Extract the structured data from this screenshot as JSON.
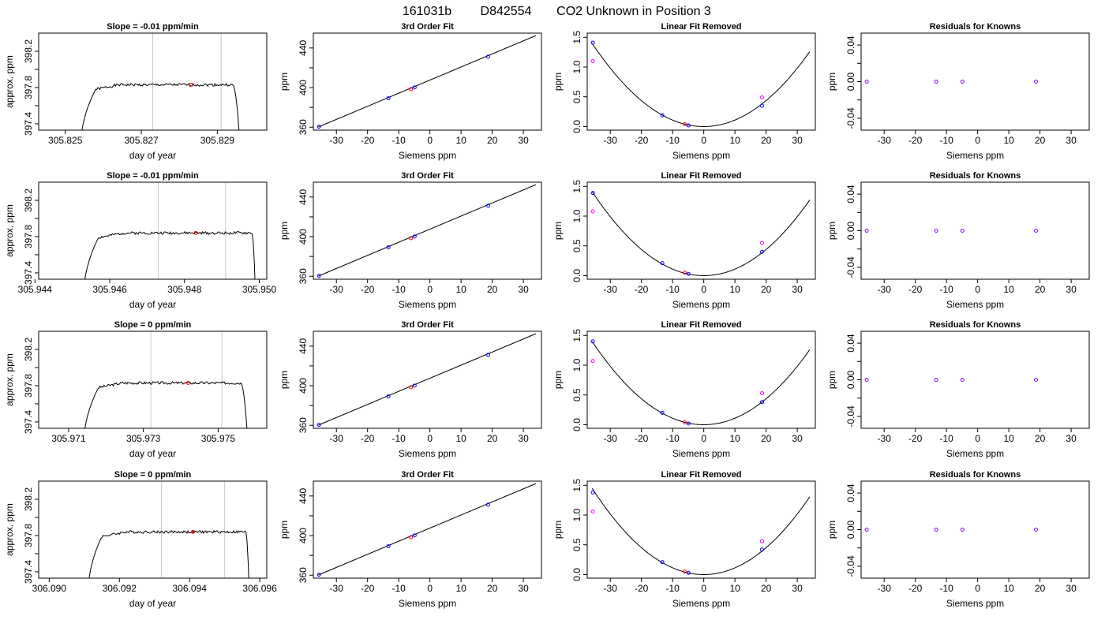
{
  "figure": {
    "title_parts": [
      "161031b",
      "D842554",
      "CO2 Unknown in Position  3"
    ]
  },
  "colors": {
    "axis": "#000000",
    "vline": "#c8c8c8",
    "highlight": "#ff0000",
    "blue": "#0000ff",
    "magenta": "#ff00ff",
    "purple": "#8000ff",
    "curve": "#000000"
  },
  "chart_data": [
    {
      "type": "line",
      "row": 0,
      "col": 0,
      "title": "Slope =  -0.01  ppm/min",
      "xlabel": "day of year",
      "ylabel": "approx. ppm",
      "xlim": [
        305.8243,
        305.8303
      ],
      "ylim": [
        397.33,
        398.4
      ],
      "xticks": [
        305.825,
        305.827,
        305.829
      ],
      "xticklabels": [
        "305.825",
        "305.827",
        "305.829"
      ],
      "yticks": [
        397.4,
        397.6,
        397.8,
        398.0,
        398.2
      ],
      "yticklabels": [
        "397.4",
        "",
        "397.8",
        "",
        "398.2"
      ],
      "vlines": [
        305.8273,
        305.8291
      ],
      "plateau": 397.83,
      "rise": [
        305.8254,
        305.8258
      ],
      "fall": [
        305.8294,
        305.8296
      ],
      "noise_seed": 1,
      "highlight": [
        305.8283,
        397.83
      ]
    },
    {
      "type": "scatter",
      "row": 0,
      "col": 1,
      "title": "3rd Order Fit",
      "xlabel": "Siemens ppm",
      "ylabel": "ppm",
      "xlim": [
        -37.4,
        35.8
      ],
      "ylim": [
        357,
        455
      ],
      "xticks": [
        -30,
        -20,
        -10,
        0,
        10,
        20,
        30
      ],
      "xticklabels": [
        "-30",
        "-20",
        "-10",
        "0",
        "10",
        "20",
        "30"
      ],
      "yticks": [
        360,
        380,
        400,
        420,
        440
      ],
      "yticklabels": [
        "360",
        "",
        "400",
        "",
        "440"
      ],
      "line": {
        "x": [
          -35.8,
          34.0
        ],
        "y": [
          360.2,
          452.5
        ]
      },
      "points": [
        {
          "x": -35.6,
          "y": 360.5,
          "c": "blue"
        },
        {
          "x": -13.3,
          "y": 389.2,
          "c": "blue"
        },
        {
          "x": -4.9,
          "y": 400.1,
          "c": "blue"
        },
        {
          "x": 18.7,
          "y": 431.2,
          "c": "blue"
        },
        {
          "x": -6.1,
          "y": 398.4,
          "c": "highlight"
        }
      ]
    },
    {
      "type": "scatter",
      "row": 0,
      "col": 2,
      "title": "Linear Fit Removed",
      "xlabel": "Siemens ppm",
      "ylabel": "ppm",
      "xlim": [
        -37.4,
        35.8
      ],
      "ylim": [
        -0.06,
        1.57
      ],
      "xticks": [
        -30,
        -20,
        -10,
        0,
        10,
        20,
        30
      ],
      "xticklabels": [
        "-30",
        "-20",
        "-10",
        "0",
        "10",
        "20",
        "30"
      ],
      "yticks": [
        0,
        0.5,
        1,
        1.5
      ],
      "yticklabels": [
        "0.0",
        "0.5",
        "1.0",
        "1.5"
      ],
      "curve": {
        "a": 0.00109,
        "h": 0.0,
        "k": 0.0,
        "xmin": -35.8,
        "xmax": 34.0
      },
      "points": [
        {
          "x": -35.6,
          "y": 1.41,
          "c": "blue"
        },
        {
          "x": -13.3,
          "y": 0.19,
          "c": "blue"
        },
        {
          "x": -4.9,
          "y": 0.02,
          "c": "blue"
        },
        {
          "x": 18.7,
          "y": 0.35,
          "c": "blue"
        },
        {
          "x": -35.6,
          "y": 1.1,
          "c": "magenta"
        },
        {
          "x": 18.7,
          "y": 0.49,
          "c": "magenta"
        },
        {
          "x": -6.1,
          "y": 0.04,
          "c": "highlight"
        }
      ]
    },
    {
      "type": "scatter",
      "row": 0,
      "col": 3,
      "title": "Residuals for Knowns",
      "xlabel": "Siemens ppm",
      "ylabel": "ppm",
      "xlim": [
        -37.4,
        35.8
      ],
      "ylim": [
        -0.053,
        0.053
      ],
      "xticks": [
        -30,
        -20,
        -10,
        0,
        10,
        20,
        30
      ],
      "xticklabels": [
        "-30",
        "-20",
        "-10",
        "0",
        "10",
        "20",
        "30"
      ],
      "yticks": [
        -0.04,
        -0.02,
        0,
        0.02,
        0.04
      ],
      "yticklabels": [
        "-0.04",
        "",
        "0.00",
        "",
        "0.04"
      ],
      "points": [
        {
          "x": -35.6,
          "y": 0,
          "c": "purple"
        },
        {
          "x": -13.3,
          "y": 0,
          "c": "purple"
        },
        {
          "x": -4.9,
          "y": 0,
          "c": "purple"
        },
        {
          "x": 18.7,
          "y": 0,
          "c": "purple"
        }
      ]
    },
    {
      "type": "line",
      "row": 1,
      "col": 0,
      "title": "Slope =  -0.01  ppm/min",
      "xlabel": "day of year",
      "ylabel": "approx. ppm",
      "xlim": [
        305.9441,
        305.9502
      ],
      "ylim": [
        397.33,
        398.4
      ],
      "xticks": [
        305.944,
        305.946,
        305.948,
        305.95
      ],
      "xticklabels": [
        "305.944",
        "305.946",
        "305.948",
        "305.950"
      ],
      "yticks": [
        397.4,
        397.6,
        397.8,
        398.0,
        398.2
      ],
      "yticklabels": [
        "397.4",
        "",
        "397.8",
        "",
        "398.2"
      ],
      "vlines": [
        305.9473,
        305.9491
      ],
      "plateau": 397.84,
      "rise": [
        305.9453,
        305.9457
      ],
      "fall": [
        305.9498,
        305.9499
      ],
      "noise_seed": 2,
      "highlight": [
        305.9483,
        397.84
      ]
    },
    {
      "type": "scatter",
      "row": 1,
      "col": 1,
      "title": "3rd Order Fit",
      "xlabel": "Siemens ppm",
      "ylabel": "ppm",
      "xlim": [
        -37.4,
        35.8
      ],
      "ylim": [
        357,
        455
      ],
      "xticks": [
        -30,
        -20,
        -10,
        0,
        10,
        20,
        30
      ],
      "xticklabels": [
        "-30",
        "-20",
        "-10",
        "0",
        "10",
        "20",
        "30"
      ],
      "yticks": [
        360,
        380,
        400,
        420,
        440
      ],
      "yticklabels": [
        "360",
        "",
        "400",
        "",
        "440"
      ],
      "line": {
        "x": [
          -35.8,
          34.0
        ],
        "y": [
          360.2,
          452.5
        ]
      },
      "points": [
        {
          "x": -35.6,
          "y": 360.5,
          "c": "blue"
        },
        {
          "x": -13.3,
          "y": 389.2,
          "c": "blue"
        },
        {
          "x": -4.9,
          "y": 400.1,
          "c": "blue"
        },
        {
          "x": 18.7,
          "y": 431.2,
          "c": "blue"
        },
        {
          "x": -6.1,
          "y": 398.4,
          "c": "highlight"
        }
      ]
    },
    {
      "type": "scatter",
      "row": 1,
      "col": 2,
      "title": "Linear Fit Removed",
      "xlabel": "Siemens ppm",
      "ylabel": "ppm",
      "xlim": [
        -37.4,
        35.8
      ],
      "ylim": [
        -0.06,
        1.57
      ],
      "xticks": [
        -30,
        -20,
        -10,
        0,
        10,
        20,
        30
      ],
      "xticklabels": [
        "-30",
        "-20",
        "-10",
        "0",
        "10",
        "20",
        "30"
      ],
      "yticks": [
        0,
        0.5,
        1,
        1.5
      ],
      "yticklabels": [
        "0.0",
        "0.5",
        "1.0",
        "1.5"
      ],
      "curve": {
        "a": 0.0011,
        "h": 0.0,
        "k": 0.0,
        "xmin": -35.8,
        "xmax": 34.0
      },
      "points": [
        {
          "x": -35.6,
          "y": 1.39,
          "c": "blue"
        },
        {
          "x": -13.3,
          "y": 0.21,
          "c": "blue"
        },
        {
          "x": -4.9,
          "y": 0.03,
          "c": "blue"
        },
        {
          "x": 18.7,
          "y": 0.4,
          "c": "blue"
        },
        {
          "x": -35.6,
          "y": 1.08,
          "c": "magenta"
        },
        {
          "x": 18.7,
          "y": 0.55,
          "c": "magenta"
        },
        {
          "x": -6.1,
          "y": 0.05,
          "c": "highlight"
        }
      ]
    },
    {
      "type": "scatter",
      "row": 1,
      "col": 3,
      "title": "Residuals for Knowns",
      "xlabel": "Siemens ppm",
      "ylabel": "ppm",
      "xlim": [
        -37.4,
        35.8
      ],
      "ylim": [
        -0.053,
        0.053
      ],
      "xticks": [
        -30,
        -20,
        -10,
        0,
        10,
        20,
        30
      ],
      "xticklabels": [
        "-30",
        "-20",
        "-10",
        "0",
        "10",
        "20",
        "30"
      ],
      "yticks": [
        -0.04,
        -0.02,
        0,
        0.02,
        0.04
      ],
      "yticklabels": [
        "-0.04",
        "",
        "0.00",
        "",
        "0.04"
      ],
      "points": [
        {
          "x": -35.6,
          "y": 0,
          "c": "purple"
        },
        {
          "x": -13.3,
          "y": 0,
          "c": "purple"
        },
        {
          "x": -4.9,
          "y": 0,
          "c": "purple"
        },
        {
          "x": 18.7,
          "y": 0,
          "c": "purple"
        }
      ]
    },
    {
      "type": "line",
      "row": 2,
      "col": 0,
      "title": "Slope =  0  ppm/min",
      "xlabel": "day of year",
      "ylabel": "approx. ppm",
      "xlim": [
        305.9702,
        305.9763
      ],
      "ylim": [
        397.33,
        398.4
      ],
      "xticks": [
        305.971,
        305.973,
        305.975
      ],
      "xticklabels": [
        "305.971",
        "305.973",
        "305.975"
      ],
      "yticks": [
        397.4,
        397.6,
        397.8,
        398.0,
        398.2
      ],
      "yticklabels": [
        "397.4",
        "",
        "397.8",
        "",
        "398.2"
      ],
      "vlines": [
        305.9732,
        305.9751
      ],
      "plateau": 397.83,
      "rise": [
        305.9714,
        305.9718
      ],
      "fall": [
        305.9756,
        305.9758
      ],
      "noise_seed": 3,
      "highlight": [
        305.9742,
        397.83
      ]
    },
    {
      "type": "scatter",
      "row": 2,
      "col": 1,
      "title": "3rd Order Fit",
      "xlabel": "Siemens ppm",
      "ylabel": "ppm",
      "xlim": [
        -37.4,
        35.8
      ],
      "ylim": [
        357,
        455
      ],
      "xticks": [
        -30,
        -20,
        -10,
        0,
        10,
        20,
        30
      ],
      "xticklabels": [
        "-30",
        "-20",
        "-10",
        "0",
        "10",
        "20",
        "30"
      ],
      "yticks": [
        360,
        380,
        400,
        420,
        440
      ],
      "yticklabels": [
        "360",
        "",
        "400",
        "",
        "440"
      ],
      "line": {
        "x": [
          -35.8,
          34.0
        ],
        "y": [
          360.2,
          452.5
        ]
      },
      "points": [
        {
          "x": -35.6,
          "y": 360.5,
          "c": "blue"
        },
        {
          "x": -13.3,
          "y": 389.2,
          "c": "blue"
        },
        {
          "x": -4.9,
          "y": 400.1,
          "c": "blue"
        },
        {
          "x": 18.7,
          "y": 431.2,
          "c": "blue"
        },
        {
          "x": -6.1,
          "y": 398.4,
          "c": "highlight"
        }
      ]
    },
    {
      "type": "scatter",
      "row": 2,
      "col": 2,
      "title": "Linear Fit Removed",
      "xlabel": "Siemens ppm",
      "ylabel": "ppm",
      "xlim": [
        -37.4,
        35.8
      ],
      "ylim": [
        -0.06,
        1.57
      ],
      "xticks": [
        -30,
        -20,
        -10,
        0,
        10,
        20,
        30
      ],
      "xticklabels": [
        "-30",
        "-20",
        "-10",
        "0",
        "10",
        "20",
        "30"
      ],
      "yticks": [
        0,
        0.5,
        1,
        1.5
      ],
      "yticklabels": [
        "0.0",
        "0.5",
        "1.0",
        "1.5"
      ],
      "curve": {
        "a": 0.00109,
        "h": 0.0,
        "k": 0.0,
        "xmin": -35.8,
        "xmax": 34.0
      },
      "points": [
        {
          "x": -35.6,
          "y": 1.4,
          "c": "blue"
        },
        {
          "x": -13.3,
          "y": 0.2,
          "c": "blue"
        },
        {
          "x": -4.9,
          "y": 0.02,
          "c": "blue"
        },
        {
          "x": 18.7,
          "y": 0.38,
          "c": "blue"
        },
        {
          "x": -35.6,
          "y": 1.07,
          "c": "magenta"
        },
        {
          "x": 18.7,
          "y": 0.53,
          "c": "magenta"
        },
        {
          "x": -6.1,
          "y": 0.04,
          "c": "highlight"
        }
      ]
    },
    {
      "type": "scatter",
      "row": 2,
      "col": 3,
      "title": "Residuals for Knowns",
      "xlabel": "Siemens ppm",
      "ylabel": "ppm",
      "xlim": [
        -37.4,
        35.8
      ],
      "ylim": [
        -0.053,
        0.053
      ],
      "xticks": [
        -30,
        -20,
        -10,
        0,
        10,
        20,
        30
      ],
      "xticklabels": [
        "-30",
        "-20",
        "-10",
        "0",
        "10",
        "20",
        "30"
      ],
      "yticks": [
        -0.04,
        -0.02,
        0,
        0.02,
        0.04
      ],
      "yticklabels": [
        "-0.04",
        "",
        "0.00",
        "",
        "0.04"
      ],
      "points": [
        {
          "x": -35.6,
          "y": 0,
          "c": "purple"
        },
        {
          "x": -13.3,
          "y": 0,
          "c": "purple"
        },
        {
          "x": -4.9,
          "y": 0,
          "c": "purple"
        },
        {
          "x": 18.7,
          "y": 0,
          "c": "purple"
        }
      ]
    },
    {
      "type": "line",
      "row": 3,
      "col": 0,
      "title": "Slope =  0  ppm/min",
      "xlabel": "day of year",
      "ylabel": "approx. ppm",
      "xlim": [
        306.0897,
        306.0962
      ],
      "ylim": [
        397.33,
        398.4
      ],
      "xticks": [
        306.09,
        306.092,
        306.094,
        306.096
      ],
      "xticklabels": [
        "306.090",
        "306.092",
        "306.094",
        "306.096"
      ],
      "yticks": [
        397.4,
        397.6,
        397.8,
        398.0,
        398.2
      ],
      "yticklabels": [
        "397.4",
        "",
        "397.8",
        "",
        "398.2"
      ],
      "vlines": [
        306.0932,
        306.095
      ],
      "plateau": 397.84,
      "rise": [
        306.0911,
        306.0915
      ],
      "fall": [
        306.0956,
        306.0957
      ],
      "noise_seed": 4,
      "highlight": [
        306.0941,
        397.84
      ]
    },
    {
      "type": "scatter",
      "row": 3,
      "col": 1,
      "title": "3rd Order Fit",
      "xlabel": "Siemens ppm",
      "ylabel": "ppm",
      "xlim": [
        -37.4,
        35.8
      ],
      "ylim": [
        357,
        455
      ],
      "xticks": [
        -30,
        -20,
        -10,
        0,
        10,
        20,
        30
      ],
      "xticklabels": [
        "-30",
        "-20",
        "-10",
        "0",
        "10",
        "20",
        "30"
      ],
      "yticks": [
        360,
        380,
        400,
        420,
        440
      ],
      "yticklabels": [
        "360",
        "",
        "400",
        "",
        "440"
      ],
      "line": {
        "x": [
          -35.8,
          34.0
        ],
        "y": [
          360.2,
          452.5
        ]
      },
      "points": [
        {
          "x": -35.6,
          "y": 360.5,
          "c": "blue"
        },
        {
          "x": -13.3,
          "y": 389.2,
          "c": "blue"
        },
        {
          "x": -4.9,
          "y": 400.1,
          "c": "blue"
        },
        {
          "x": 18.7,
          "y": 431.2,
          "c": "blue"
        },
        {
          "x": -6.1,
          "y": 398.4,
          "c": "highlight"
        }
      ]
    },
    {
      "type": "scatter",
      "row": 3,
      "col": 2,
      "title": "Linear Fit Removed",
      "xlabel": "Siemens ppm",
      "ylabel": "ppm",
      "xlim": [
        -37.4,
        35.8
      ],
      "ylim": [
        -0.06,
        1.57
      ],
      "xticks": [
        -30,
        -20,
        -10,
        0,
        10,
        20,
        30
      ],
      "xticklabels": [
        "-30",
        "-20",
        "-10",
        "0",
        "10",
        "20",
        "30"
      ],
      "yticks": [
        0,
        0.5,
        1,
        1.5
      ],
      "yticklabels": [
        "0.0",
        "0.5",
        "1.0",
        "1.5"
      ],
      "curve": {
        "a": 0.00113,
        "h": 0.0,
        "k": 0.0,
        "xmin": -35.8,
        "xmax": 34.0
      },
      "points": [
        {
          "x": -35.6,
          "y": 1.38,
          "c": "blue"
        },
        {
          "x": -13.3,
          "y": 0.21,
          "c": "blue"
        },
        {
          "x": -4.9,
          "y": 0.03,
          "c": "blue"
        },
        {
          "x": 18.7,
          "y": 0.42,
          "c": "blue"
        },
        {
          "x": -35.6,
          "y": 1.06,
          "c": "magenta"
        },
        {
          "x": 18.7,
          "y": 0.56,
          "c": "magenta"
        },
        {
          "x": -6.1,
          "y": 0.05,
          "c": "highlight"
        }
      ]
    },
    {
      "type": "scatter",
      "row": 3,
      "col": 3,
      "title": "Residuals for Knowns",
      "xlabel": "Siemens ppm",
      "ylabel": "ppm",
      "xlim": [
        -37.4,
        35.8
      ],
      "ylim": [
        -0.053,
        0.053
      ],
      "xticks": [
        -30,
        -20,
        -10,
        0,
        10,
        20,
        30
      ],
      "xticklabels": [
        "-30",
        "-20",
        "-10",
        "0",
        "10",
        "20",
        "30"
      ],
      "yticks": [
        -0.04,
        -0.02,
        0,
        0.02,
        0.04
      ],
      "yticklabels": [
        "-0.04",
        "",
        "0.00",
        "",
        "0.04"
      ],
      "points": [
        {
          "x": -35.6,
          "y": 0,
          "c": "purple"
        },
        {
          "x": -13.3,
          "y": 0,
          "c": "purple"
        },
        {
          "x": -4.9,
          "y": 0,
          "c": "purple"
        },
        {
          "x": 18.7,
          "y": 0,
          "c": "purple"
        }
      ]
    }
  ]
}
